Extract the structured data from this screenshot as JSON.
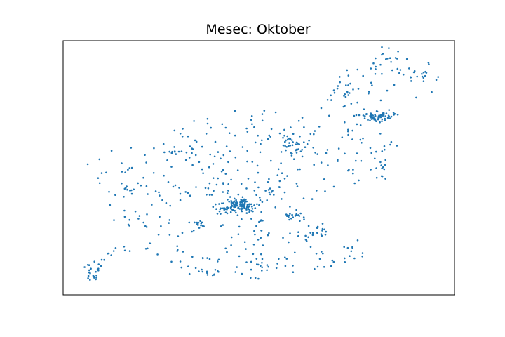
{
  "chart_data": {
    "type": "scatter",
    "title": "Mesec: Oktober",
    "xlabel": "",
    "ylabel": "",
    "grid": false,
    "axes_ticks_visible": false,
    "colors": {
      "point": "#1f77b4",
      "axes": "#000000",
      "background": "#ffffff"
    },
    "xlim": [
      0,
      100
    ],
    "ylim": [
      0,
      100
    ],
    "clusters": [
      {
        "cx": 45.5,
        "cy": 35.3,
        "count": 95,
        "sx": 2.1,
        "sy": 1.4
      },
      {
        "cx": 41.5,
        "cy": 34.2,
        "count": 18,
        "sx": 1.0,
        "sy": 1.0
      },
      {
        "cx": 81.0,
        "cy": 70.0,
        "count": 48,
        "sx": 1.6,
        "sy": 1.0
      },
      {
        "cx": 77.0,
        "cy": 70.5,
        "count": 12,
        "sx": 1.4,
        "sy": 0.6
      },
      {
        "cx": 59.0,
        "cy": 58.5,
        "count": 24,
        "sx": 1.5,
        "sy": 1.5
      },
      {
        "cx": 57.5,
        "cy": 62.0,
        "count": 10,
        "sx": 0.8,
        "sy": 1.5
      },
      {
        "cx": 59.5,
        "cy": 31.2,
        "count": 18,
        "sx": 1.2,
        "sy": 0.9
      },
      {
        "cx": 7.8,
        "cy": 10.0,
        "count": 22,
        "sx": 0.9,
        "sy": 2.0
      },
      {
        "cx": 82.5,
        "cy": 93.5,
        "count": 14,
        "sx": 2.0,
        "sy": 2.0
      },
      {
        "cx": 91.5,
        "cy": 86.0,
        "count": 16,
        "sx": 2.8,
        "sy": 2.3
      },
      {
        "cx": 72.0,
        "cy": 78.5,
        "count": 12,
        "sx": 1.0,
        "sy": 2.0
      },
      {
        "cx": 39.0,
        "cy": 41.0,
        "count": 14,
        "sx": 2.5,
        "sy": 2.5
      },
      {
        "cx": 37.0,
        "cy": 9.0,
        "count": 8,
        "sx": 1.5,
        "sy": 0.6
      },
      {
        "cx": 28.5,
        "cy": 56.0,
        "count": 8,
        "sx": 1.3,
        "sy": 0.5
      },
      {
        "cx": 17.5,
        "cy": 41.5,
        "count": 6,
        "sx": 1.2,
        "sy": 0.6
      },
      {
        "cx": 65.5,
        "cy": 26.0,
        "count": 10,
        "sx": 1.2,
        "sy": 1.5
      },
      {
        "cx": 54.0,
        "cy": 41.0,
        "count": 12,
        "sx": 2.0,
        "sy": 2.5
      },
      {
        "cx": 73.5,
        "cy": 17.5,
        "count": 8,
        "sx": 1.0,
        "sy": 2.5
      },
      {
        "cx": 81.0,
        "cy": 49.0,
        "count": 10,
        "sx": 1.2,
        "sy": 2.0
      },
      {
        "cx": 34.0,
        "cy": 28.0,
        "count": 10,
        "sx": 1.5,
        "sy": 0.8
      },
      {
        "cx": 62.5,
        "cy": 23.5,
        "count": 8,
        "sx": 1.5,
        "sy": 1.2
      },
      {
        "cx": 51.0,
        "cy": 11.5,
        "count": 6,
        "sx": 1.5,
        "sy": 1.0
      }
    ],
    "background_scatter": {
      "count": 430,
      "shape": "slovenia-outline"
    }
  }
}
